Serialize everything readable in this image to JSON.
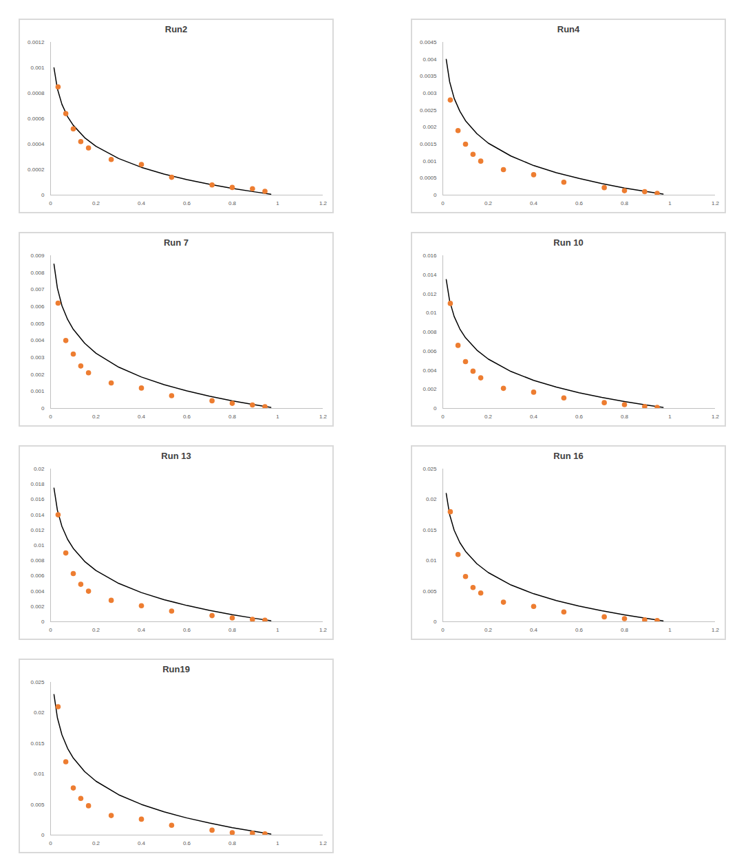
{
  "chart_data": [
    {
      "type": "scatter",
      "title": "Run2",
      "grid": false,
      "xlim": [
        0,
        1.2
      ],
      "xticks": [
        0,
        0.2,
        0.4,
        0.6,
        0.8,
        1,
        1.2
      ],
      "ylim": [
        0,
        0.0012
      ],
      "yticks": [
        0,
        0.0002,
        0.0004,
        0.0006,
        0.0008,
        0.001,
        0.0012
      ],
      "series": [
        {
          "type": "line",
          "color": "#000000",
          "x": [
            0.015,
            0.03,
            0.05,
            0.075,
            0.1,
            0.15,
            0.2,
            0.3,
            0.4,
            0.5,
            0.6,
            0.7,
            0.8,
            0.9,
            0.97
          ],
          "values": [
            0.001,
            0.000835,
            0.000713,
            0.000616,
            0.000548,
            0.000451,
            0.000383,
            0.000287,
            0.000218,
            0.000165,
            0.000122,
            8.5e-05,
            5.3e-05,
            2.5e-05,
            7e-06
          ]
        },
        {
          "type": "scatter",
          "color": "#ed7d31",
          "marker": "circle",
          "x": [
            0.033,
            0.067,
            0.1,
            0.133,
            0.167,
            0.267,
            0.4,
            0.533,
            0.711,
            0.8,
            0.889,
            0.944
          ],
          "values": [
            0.00085,
            0.00064,
            0.00052,
            0.00042,
            0.00037,
            0.00028,
            0.00024,
            0.00014,
            8e-05,
            6e-05,
            5e-05,
            3e-05
          ]
        }
      ]
    },
    {
      "type": "scatter",
      "title": "Run4",
      "grid": false,
      "xlim": [
        0,
        1.2
      ],
      "xticks": [
        0,
        0.2,
        0.4,
        0.6,
        0.8,
        1,
        1.2
      ],
      "ylim": [
        0,
        0.0045
      ],
      "yticks": [
        0,
        0.0005,
        0.001,
        0.0015,
        0.002,
        0.0025,
        0.003,
        0.0035,
        0.004,
        0.0045
      ],
      "series": [
        {
          "type": "line",
          "color": "#000000",
          "x": [
            0.015,
            0.03,
            0.05,
            0.075,
            0.1,
            0.15,
            0.2,
            0.3,
            0.4,
            0.5,
            0.6,
            0.7,
            0.8,
            0.9,
            0.97
          ],
          "values": [
            0.004,
            0.00334,
            0.00285,
            0.00247,
            0.00219,
            0.00181,
            0.00153,
            0.00115,
            0.00087,
            0.00066,
            0.00049,
            0.00034,
            0.00021,
            0.0001,
            3e-05
          ]
        },
        {
          "type": "scatter",
          "color": "#ed7d31",
          "marker": "circle",
          "x": [
            0.033,
            0.067,
            0.1,
            0.133,
            0.167,
            0.267,
            0.4,
            0.533,
            0.711,
            0.8,
            0.889,
            0.944
          ],
          "values": [
            0.0028,
            0.0019,
            0.0015,
            0.0012,
            0.001,
            0.00075,
            0.0006,
            0.00038,
            0.00022,
            0.00013,
            0.0001,
            5e-05
          ]
        }
      ]
    },
    {
      "type": "scatter",
      "title": "Run 7",
      "grid": false,
      "xlim": [
        0,
        1.2
      ],
      "xticks": [
        0,
        0.2,
        0.4,
        0.6,
        0.8,
        1,
        1.2
      ],
      "ylim": [
        0,
        0.009
      ],
      "yticks": [
        0,
        0.001,
        0.002,
        0.003,
        0.004,
        0.005,
        0.006,
        0.007,
        0.008,
        0.009
      ],
      "series": [
        {
          "type": "line",
          "color": "#000000",
          "x": [
            0.015,
            0.03,
            0.05,
            0.075,
            0.1,
            0.15,
            0.2,
            0.3,
            0.4,
            0.5,
            0.6,
            0.7,
            0.8,
            0.9,
            0.97
          ],
          "values": [
            0.0085,
            0.00709,
            0.00605,
            0.00524,
            0.00466,
            0.00384,
            0.00325,
            0.00243,
            0.00185,
            0.0014,
            0.00103,
            0.00072,
            0.00045,
            0.00021,
            6e-05
          ]
        },
        {
          "type": "scatter",
          "color": "#ed7d31",
          "marker": "circle",
          "x": [
            0.033,
            0.067,
            0.1,
            0.133,
            0.167,
            0.267,
            0.4,
            0.533,
            0.711,
            0.8,
            0.889,
            0.944
          ],
          "values": [
            0.0062,
            0.004,
            0.0032,
            0.0025,
            0.0021,
            0.0015,
            0.0012,
            0.00075,
            0.00045,
            0.0003,
            0.0002,
            0.0001
          ]
        }
      ]
    },
    {
      "type": "scatter",
      "title": "Run 10",
      "grid": false,
      "xlim": [
        0,
        1.2
      ],
      "xticks": [
        0,
        0.2,
        0.4,
        0.6,
        0.8,
        1,
        1.2
      ],
      "ylim": [
        0,
        0.016
      ],
      "yticks": [
        0,
        0.002,
        0.004,
        0.006,
        0.008,
        0.01,
        0.012,
        0.014,
        0.016
      ],
      "series": [
        {
          "type": "line",
          "color": "#000000",
          "x": [
            0.015,
            0.03,
            0.05,
            0.075,
            0.1,
            0.15,
            0.2,
            0.3,
            0.4,
            0.5,
            0.6,
            0.7,
            0.8,
            0.9,
            0.97
          ],
          "values": [
            0.0135,
            0.01127,
            0.00963,
            0.00832,
            0.0074,
            0.0061,
            0.00517,
            0.00387,
            0.00294,
            0.00223,
            0.00164,
            0.00115,
            0.00072,
            0.00034,
            0.0001
          ]
        },
        {
          "type": "scatter",
          "color": "#ed7d31",
          "marker": "circle",
          "x": [
            0.033,
            0.067,
            0.1,
            0.133,
            0.167,
            0.267,
            0.4,
            0.533,
            0.711,
            0.8,
            0.889,
            0.944
          ],
          "values": [
            0.011,
            0.0066,
            0.0049,
            0.0039,
            0.0032,
            0.0021,
            0.0017,
            0.0011,
            0.0006,
            0.0004,
            0.0002,
            0.0001
          ]
        }
      ]
    },
    {
      "type": "scatter",
      "title": "Run 13",
      "grid": false,
      "xlim": [
        0,
        1.2
      ],
      "xticks": [
        0,
        0.2,
        0.4,
        0.6,
        0.8,
        1,
        1.2
      ],
      "ylim": [
        0,
        0.02
      ],
      "yticks": [
        0,
        0.002,
        0.004,
        0.006,
        0.008,
        0.01,
        0.012,
        0.014,
        0.016,
        0.018,
        0.02
      ],
      "series": [
        {
          "type": "line",
          "color": "#000000",
          "x": [
            0.015,
            0.03,
            0.05,
            0.075,
            0.1,
            0.15,
            0.2,
            0.3,
            0.4,
            0.5,
            0.6,
            0.7,
            0.8,
            0.9,
            0.97
          ],
          "values": [
            0.0175,
            0.01461,
            0.01248,
            0.01079,
            0.0096,
            0.0079,
            0.0067,
            0.00502,
            0.00382,
            0.00289,
            0.00213,
            0.00149,
            0.00093,
            0.00044,
            0.00013
          ]
        },
        {
          "type": "scatter",
          "color": "#ed7d31",
          "marker": "circle",
          "x": [
            0.033,
            0.067,
            0.1,
            0.133,
            0.167,
            0.267,
            0.4,
            0.533,
            0.711,
            0.8,
            0.889,
            0.944
          ],
          "values": [
            0.014,
            0.009,
            0.0063,
            0.0049,
            0.004,
            0.0028,
            0.0021,
            0.0014,
            0.0008,
            0.0005,
            0.0003,
            0.0002
          ]
        }
      ]
    },
    {
      "type": "scatter",
      "title": "Run 16",
      "grid": false,
      "xlim": [
        0,
        1.2
      ],
      "xticks": [
        0,
        0.2,
        0.4,
        0.6,
        0.8,
        1,
        1.2
      ],
      "ylim": [
        0,
        0.025
      ],
      "yticks": [
        0,
        0.005,
        0.01,
        0.015,
        0.02,
        0.025
      ],
      "series": [
        {
          "type": "line",
          "color": "#000000",
          "x": [
            0.015,
            0.03,
            0.05,
            0.075,
            0.1,
            0.15,
            0.2,
            0.3,
            0.4,
            0.5,
            0.6,
            0.7,
            0.8,
            0.9,
            0.97
          ],
          "values": [
            0.021,
            0.01754,
            0.01498,
            0.01295,
            0.01152,
            0.00949,
            0.00805,
            0.00602,
            0.00458,
            0.00347,
            0.00256,
            0.00179,
            0.00112,
            0.00053,
            0.00015
          ]
        },
        {
          "type": "scatter",
          "color": "#ed7d31",
          "marker": "circle",
          "x": [
            0.033,
            0.067,
            0.1,
            0.133,
            0.167,
            0.267,
            0.4,
            0.533,
            0.711,
            0.8,
            0.889,
            0.944
          ],
          "values": [
            0.018,
            0.011,
            0.0074,
            0.0056,
            0.0047,
            0.0032,
            0.0025,
            0.0016,
            0.0008,
            0.0005,
            0.0003,
            0.0002
          ]
        }
      ]
    },
    {
      "type": "scatter",
      "title": "Run19",
      "grid": false,
      "xlim": [
        0,
        1.2
      ],
      "xticks": [
        0,
        0.2,
        0.4,
        0.6,
        0.8,
        1,
        1.2
      ],
      "ylim": [
        0,
        0.025
      ],
      "yticks": [
        0,
        0.005,
        0.01,
        0.015,
        0.02,
        0.025
      ],
      "series": [
        {
          "type": "line",
          "color": "#000000",
          "x": [
            0.015,
            0.03,
            0.05,
            0.075,
            0.1,
            0.15,
            0.2,
            0.3,
            0.4,
            0.5,
            0.6,
            0.7,
            0.8,
            0.9,
            0.97
          ],
          "values": [
            0.023,
            0.0192,
            0.01641,
            0.01418,
            0.01261,
            0.01039,
            0.00881,
            0.00659,
            0.00502,
            0.0038,
            0.0028,
            0.00196,
            0.00122,
            0.00058,
            0.00016
          ]
        },
        {
          "type": "scatter",
          "color": "#ed7d31",
          "marker": "circle",
          "x": [
            0.033,
            0.067,
            0.1,
            0.133,
            0.167,
            0.267,
            0.4,
            0.533,
            0.711,
            0.8,
            0.889,
            0.944
          ],
          "values": [
            0.021,
            0.012,
            0.0077,
            0.006,
            0.0048,
            0.0032,
            0.0026,
            0.0016,
            0.0008,
            0.0004,
            0.0003,
            0.0002
          ]
        }
      ]
    }
  ]
}
